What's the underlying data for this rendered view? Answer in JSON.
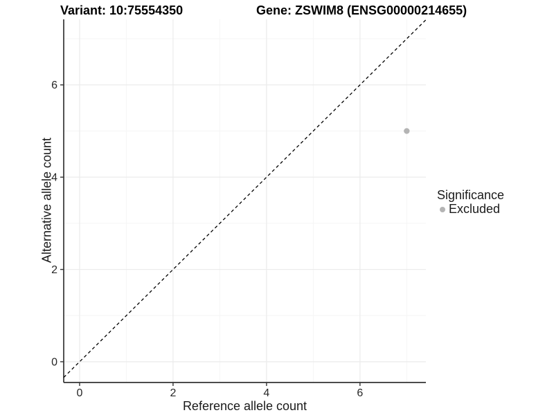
{
  "titles": {
    "variant": "Variant: 10:75554350",
    "gene": "Gene: ZSWIM8 (ENSG00000214655)"
  },
  "chart_data": {
    "type": "scatter",
    "title_left": "Variant: 10:75554350",
    "title_right": "Gene: ZSWIM8 (ENSG00000214655)",
    "xlabel": "Reference allele count",
    "ylabel": "Alternative allele count",
    "xlim": [
      -0.34,
      7.41
    ],
    "ylim": [
      -0.45,
      7.42
    ],
    "x_major_ticks": [
      0,
      2,
      4,
      6
    ],
    "x_minor_ticks": [
      1,
      3,
      5,
      7
    ],
    "y_major_ticks": [
      0,
      2,
      4,
      6
    ],
    "y_minor_ticks": [
      1,
      3,
      5,
      7
    ],
    "grid": true,
    "reference_line": {
      "type": "identity",
      "slope": 1,
      "intercept": 0,
      "style": "dashed",
      "color": "#000000"
    },
    "series": [
      {
        "name": "Excluded",
        "color": "#b4b4b4",
        "points": [
          {
            "x": 7,
            "y": 5
          }
        ]
      }
    ],
    "legend": {
      "title": "Significance",
      "position": "right",
      "items": [
        {
          "label": "Excluded",
          "color": "#b4b4b4"
        }
      ]
    },
    "colors": {
      "grid_major": "#ebebeb",
      "grid_minor": "#f5f5f5",
      "axis_line": "#333333",
      "tick_label": "#262626",
      "point": "#b4b4b4",
      "background": "#ffffff"
    }
  }
}
